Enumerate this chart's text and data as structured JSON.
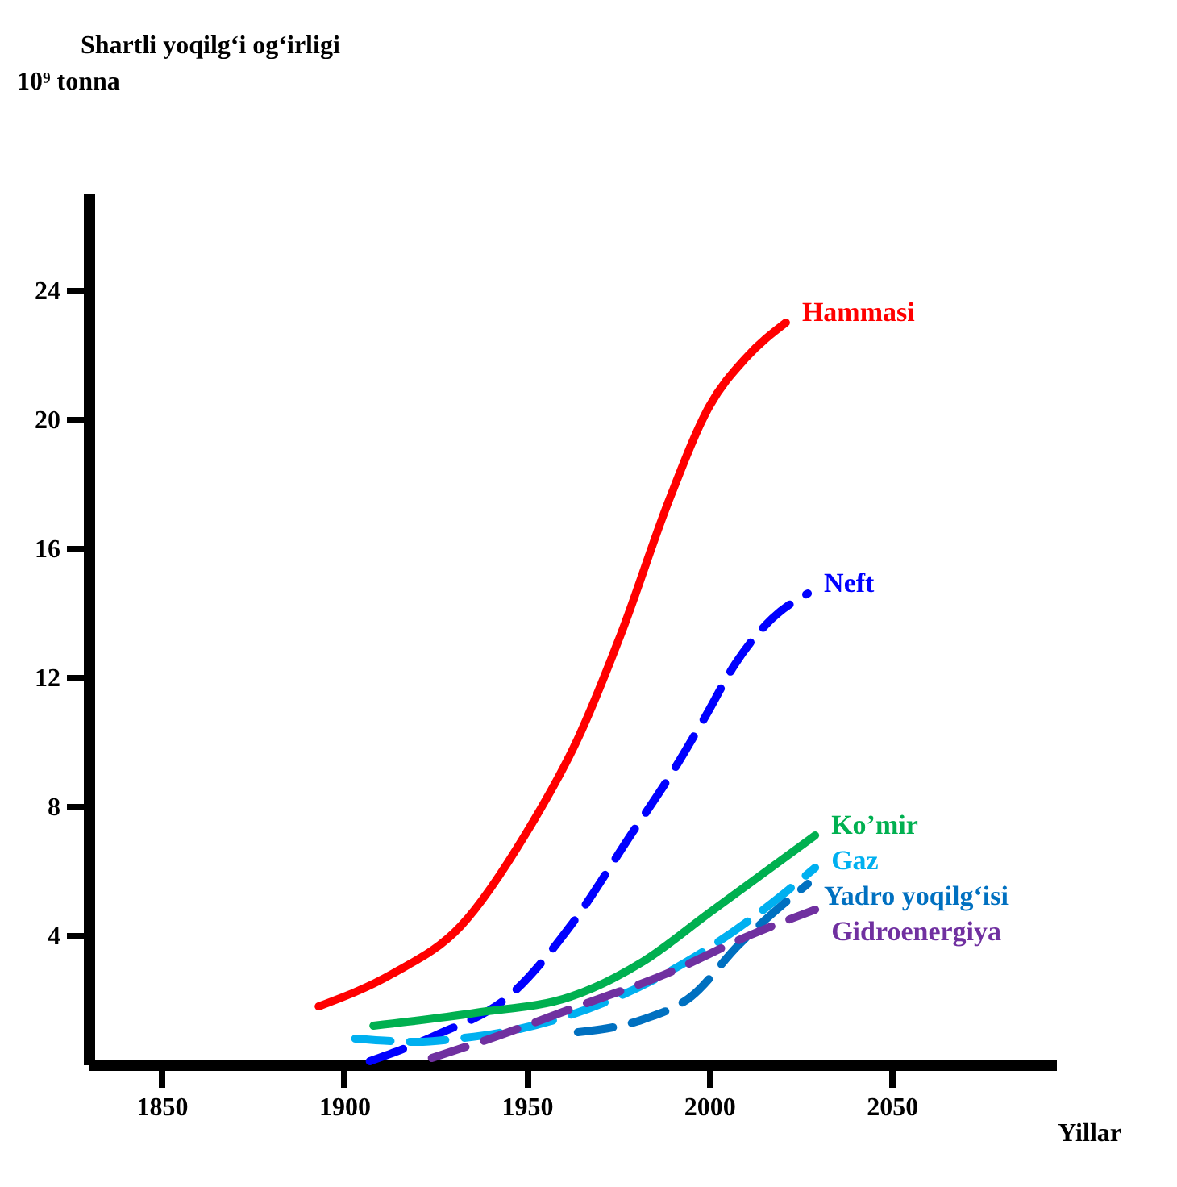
{
  "chart_data": {
    "type": "line",
    "title": "Shartli yoqilg‘i og‘irligi",
    "ylabel": "10⁹ tonna",
    "xlabel": "Yillar",
    "xlim": [
      1830,
      2095
    ],
    "xticks": [
      1850,
      1900,
      1950,
      2000,
      2050
    ],
    "ylim": [
      0,
      27
    ],
    "yticks": [
      4,
      8,
      12,
      16,
      20,
      24
    ],
    "grid": false,
    "legend": false,
    "series": [
      {
        "name": "Hammasi",
        "color": "#ff0000",
        "line_style": "solid",
        "x": [
          1893,
          1913,
          1932,
          1950,
          1964,
          1976,
          1989,
          2000,
          2010,
          2021
        ],
        "values": [
          1.8,
          2.8,
          4.3,
          7.2,
          10.1,
          13.4,
          17.5,
          20.4,
          21.9,
          23
        ]
      },
      {
        "name": "Neft",
        "color": "#0000ff",
        "line_style": "dashed",
        "x": [
          1907,
          1925,
          1946,
          1962,
          1979,
          1989,
          1999,
          2007,
          2017,
          2027
        ],
        "values": [
          0.1,
          0.9,
          2.2,
          4.3,
          7.2,
          8.9,
          10.8,
          12.4,
          13.8,
          14.6
        ]
      },
      {
        "name": "Ko’mir",
        "color": "#00b050",
        "line_style": "solid",
        "x": [
          1908,
          1936,
          1962,
          1982,
          2000,
          2029
        ],
        "values": [
          1.2,
          1.6,
          2.1,
          3.2,
          4.7,
          7.1
        ]
      },
      {
        "name": "Gaz",
        "color": "#00b0f0",
        "line_style": "dashed",
        "x": [
          1903,
          1920,
          1931,
          1948,
          1973,
          1994,
          2016,
          2029
        ],
        "values": [
          0.8,
          0.7,
          0.8,
          1.1,
          2.0,
          3.2,
          4.9,
          6.1
        ]
      },
      {
        "name": "Yadro yoqilg‘isi",
        "color": "#0070c0",
        "line_style": "dashed",
        "x": [
          1964,
          1982,
          1995,
          2008,
          2027
        ],
        "values": [
          1.0,
          1.4,
          2.1,
          3.7,
          5.6
        ]
      },
      {
        "name": "Gidroenergiya",
        "color": "#7030a0",
        "line_style": "dashed",
        "x": [
          1924,
          1940,
          1964,
          1988,
          2011,
          2029
        ],
        "values": [
          0.2,
          0.8,
          1.8,
          2.8,
          4.0,
          4.8
        ]
      }
    ]
  }
}
